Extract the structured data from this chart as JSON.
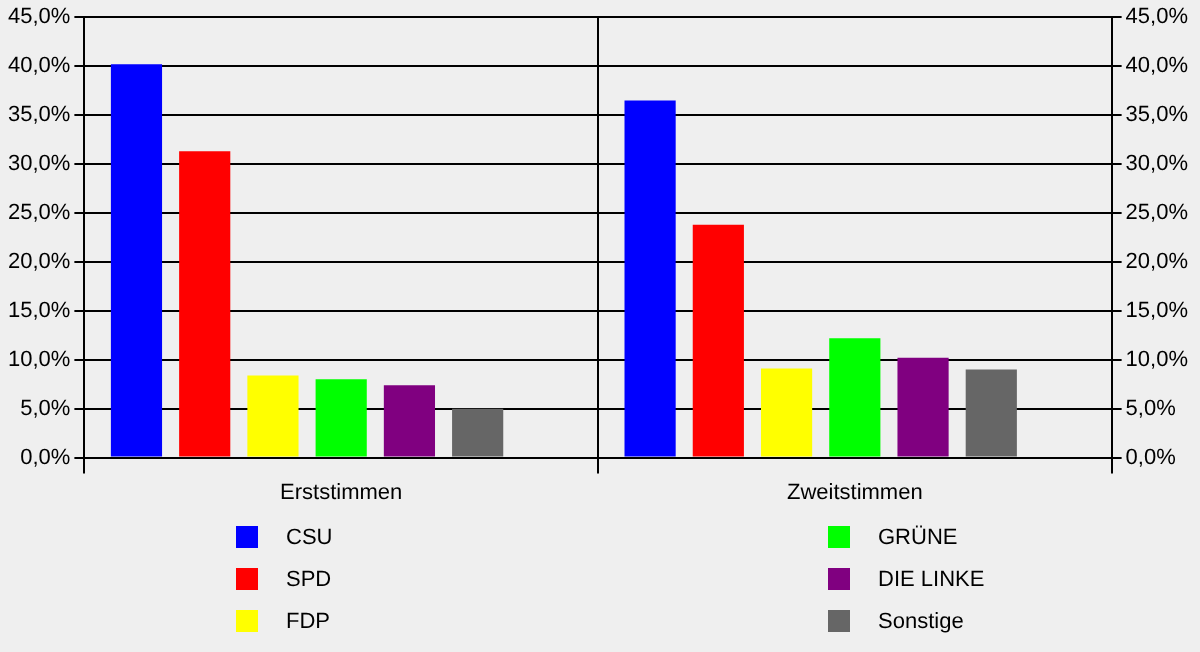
{
  "chart_data": {
    "type": "bar",
    "categories": [
      "Erststimmen",
      "Zweitstimmen"
    ],
    "series": [
      {
        "name": "CSU",
        "color": "#0000ff",
        "values": [
          40.2,
          36.5
        ]
      },
      {
        "name": "SPD",
        "color": "#ff0000",
        "values": [
          31.3,
          23.8
        ]
      },
      {
        "name": "FDP",
        "color": "#ffff00",
        "values": [
          8.4,
          9.1
        ]
      },
      {
        "name": "GRÜNE",
        "color": "#00ff00",
        "values": [
          8.0,
          12.2
        ]
      },
      {
        "name": "DIE LINKE",
        "color": "#800080",
        "values": [
          7.4,
          10.2
        ]
      },
      {
        "name": "Sonstige",
        "color": "#666666",
        "values": [
          5.0,
          9.0
        ]
      }
    ],
    "ylim": [
      0,
      45
    ],
    "yticks": [
      {
        "value": 0,
        "label": "0,0%"
      },
      {
        "value": 5,
        "label": "5,0%"
      },
      {
        "value": 10,
        "label": "10,0%"
      },
      {
        "value": 15,
        "label": "15,0%"
      },
      {
        "value": 20,
        "label": "20,0%"
      },
      {
        "value": 25,
        "label": "25,0%"
      },
      {
        "value": 30,
        "label": "30,0%"
      },
      {
        "value": 35,
        "label": "35,0%"
      },
      {
        "value": 40,
        "label": "40,0%"
      },
      {
        "value": 45,
        "label": "45,0%"
      }
    ],
    "y2lim": [
      0,
      45
    ],
    "y2ticks": [
      {
        "value": 0,
        "label": "0,0%"
      },
      {
        "value": 5,
        "label": "5,0%"
      },
      {
        "value": 10,
        "label": "10,0%"
      },
      {
        "value": 15,
        "label": "15,0%"
      },
      {
        "value": 20,
        "label": "20,0%"
      },
      {
        "value": 25,
        "label": "25,0%"
      },
      {
        "value": 30,
        "label": "30,0%"
      },
      {
        "value": 35,
        "label": "35,0%"
      },
      {
        "value": 40,
        "label": "40,0%"
      },
      {
        "value": 45,
        "label": "45,0%"
      }
    ],
    "grid": "y",
    "legend": "bottom"
  }
}
